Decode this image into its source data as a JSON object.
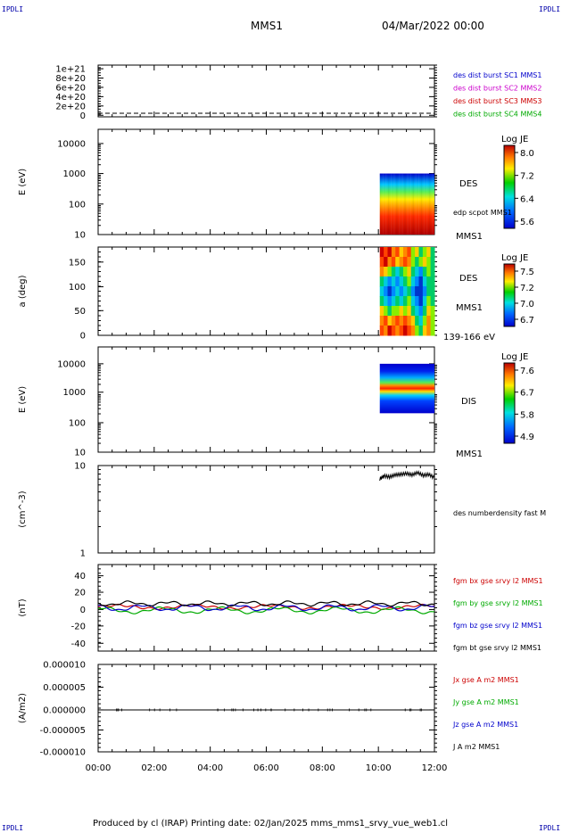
{
  "header": {
    "corner_left_top": "IPDLI",
    "corner_right_top": "IPDLI",
    "corner_left_bottom": "IPDLI",
    "corner_right_bottom": "IPDLI",
    "title": "MMS1",
    "datetime": "04/Mar/2022 00:00"
  },
  "footer": {
    "text": "Produced by cl (IRAP)   Printing date: 02/Jan/2025   mms_mms1_srvy_vue_web1.cl"
  },
  "x_axis": {
    "ticks": [
      "00:00",
      "02:00",
      "04:00",
      "06:00",
      "08:00",
      "10:00",
      "12:00"
    ],
    "range_hours": [
      0,
      12
    ]
  },
  "chart_data": [
    {
      "type": "line",
      "panel": "distribution",
      "yticks": [
        "1e+21",
        "8e+20",
        "6e+20",
        "4e+20",
        "2e+20",
        "0"
      ],
      "ylim": [
        0,
        1e+21
      ],
      "legend": [
        {
          "text": "des dist burst SC1 MMS1",
          "color": "#0000cc"
        },
        {
          "text": "des dist burst SC2 MMS2",
          "color": "#cc00cc"
        },
        {
          "text": "des dist burst SC3 MMS3",
          "color": "#cc0000"
        },
        {
          "text": "des dist burst SC4 MMS4",
          "color": "#00aa00"
        }
      ]
    },
    {
      "type": "heatmap",
      "panel": "des-energy",
      "ylabel": "E (eV)",
      "yticks": [
        "10000",
        "1000",
        "100",
        "10"
      ],
      "log_y": true,
      "data_time_range_hours": [
        10.05,
        12.0
      ],
      "energy_range_eV": [
        10,
        1000
      ],
      "colorbar": {
        "title": "Log JE",
        "ticks": [
          "8.0",
          "7.2",
          "6.4",
          "5.6"
        ],
        "range": [
          5.6,
          8.0
        ]
      },
      "side_labels": [
        "DES",
        "edp scpot MMS1",
        "MMS1"
      ]
    },
    {
      "type": "heatmap",
      "panel": "des-pitch",
      "ylabel": "a (deg)",
      "yticks": [
        "150",
        "100",
        "50",
        "0"
      ],
      "ylim": [
        0,
        180
      ],
      "data_time_range_hours": [
        10.05,
        12.0
      ],
      "colorbar": {
        "title": "Log JE",
        "ticks": [
          "7.5",
          "7.2",
          "7.0",
          "6.7"
        ],
        "range": [
          6.7,
          7.5
        ]
      },
      "side_labels": [
        "DES",
        "MMS1",
        "139-166 eV"
      ]
    },
    {
      "type": "heatmap",
      "panel": "dis-energy",
      "ylabel": "E (eV)",
      "yticks": [
        "10000",
        "1000",
        "100",
        "10"
      ],
      "log_y": true,
      "data_time_range_hours": [
        10.05,
        12.0
      ],
      "energy_range_eV": [
        200,
        10000
      ],
      "colorbar": {
        "title": "Log JE",
        "ticks": [
          "7.6",
          "6.7",
          "5.8",
          "4.9"
        ],
        "range": [
          4.9,
          7.6
        ]
      },
      "side_labels": [
        "DIS",
        "MMS1"
      ]
    },
    {
      "type": "line",
      "panel": "density",
      "ylabel": "(cm^-3)",
      "yticks": [
        "10",
        "1"
      ],
      "log_y": true,
      "ylim": [
        1,
        10
      ],
      "legend": [
        {
          "text": "des numberdensity fast M",
          "color": "#000000"
        }
      ],
      "series": [
        {
          "x": [
            10.05,
            10.2,
            10.4,
            10.6,
            10.8,
            11.0,
            11.2,
            11.4,
            11.6,
            11.8,
            12.0
          ],
          "y": [
            7.0,
            7.6,
            7.4,
            7.8,
            7.9,
            8.1,
            7.8,
            8.3,
            7.7,
            7.9,
            7.2
          ]
        }
      ]
    },
    {
      "type": "line",
      "panel": "magnetic-field",
      "ylabel": "(nT)",
      "yticks": [
        "40",
        "20",
        "0",
        "-20",
        "-40"
      ],
      "ylim": [
        -50,
        50
      ],
      "legend": [
        {
          "text": "fgm bx gse srvy l2 MMS1",
          "color": "#cc0000"
        },
        {
          "text": "fgm by gse srvy l2 MMS1",
          "color": "#00aa00"
        },
        {
          "text": "fgm bz gse srvy l2 MMS1",
          "color": "#0000cc"
        },
        {
          "text": "fgm bt gse srvy l2 MMS1",
          "color": "#000000"
        }
      ],
      "series": [
        {
          "name": "fgm bx gse srvy l2 MMS1",
          "color": "#cc0000",
          "y_mean": 2,
          "y_amp": 2
        },
        {
          "name": "fgm by gse srvy l2 MMS1",
          "color": "#00aa00",
          "y_mean": -2,
          "y_amp": 3
        },
        {
          "name": "fgm bz gse srvy l2 MMS1",
          "color": "#0000cc",
          "y_mean": 1,
          "y_amp": 3
        },
        {
          "name": "fgm bt gse srvy l2 MMS1",
          "color": "#000000",
          "y_mean": 6,
          "y_amp": 2
        }
      ]
    },
    {
      "type": "line",
      "panel": "current-density",
      "ylabel": "(A/m2)",
      "yticks": [
        "0.000010",
        "0.000005",
        "0.000000",
        "-0.000005",
        "-0.000010"
      ],
      "ylim": [
        -1e-05,
        1e-05
      ],
      "legend": [
        {
          "text": "Jx gse A m2 MMS1",
          "color": "#cc0000"
        },
        {
          "text": "Jy gse A m2 MMS1",
          "color": "#00aa00"
        },
        {
          "text": "Jz gse A m2 MMS1",
          "color": "#0000cc"
        },
        {
          "text": "J A m2 MMS1",
          "color": "#000000"
        }
      ]
    }
  ]
}
